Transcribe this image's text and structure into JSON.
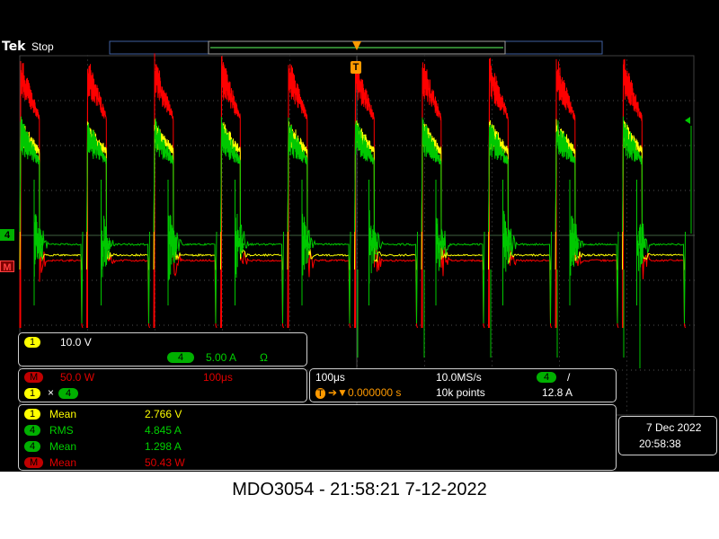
{
  "header": {
    "brand": "Tek",
    "status": "Stop"
  },
  "trigger_marker": "T",
  "channel_markers": {
    "ch4": "4",
    "math": "M"
  },
  "channel_box": {
    "ch1_badge": "1",
    "ch1_scale": "10.0 V",
    "ch4_badge": "4",
    "ch4_scale": "5.00 A",
    "ch4_unit": "Ω"
  },
  "math_box": {
    "badge": "M",
    "scale": "50.0 W",
    "time": "100μs",
    "operand1": "1",
    "operator": "×",
    "operand2": "4"
  },
  "timebase": {
    "horizontal": "100μs",
    "sample_rate": "10.0MS/s",
    "trigger_channel": "4",
    "trigger_slope": "/",
    "trigger_icon": "T",
    "position": "0.000000 s",
    "record_length": "10k points",
    "trigger_level": "12.8 A"
  },
  "measurements": [
    {
      "badge": "1",
      "type": "Mean",
      "value": "2.766 V",
      "color": "yellow"
    },
    {
      "badge": "4",
      "type": "RMS",
      "value": "4.845 A",
      "color": "green"
    },
    {
      "badge": "4",
      "type": "Mean",
      "value": "1.298 A",
      "color": "green"
    },
    {
      "badge": "M",
      "type": "Mean",
      "value": "50.43 W",
      "color": "red"
    }
  ],
  "date_box": {
    "date": "7 Dec  2022",
    "time": "20:58:38"
  },
  "footer": "MDO3054 - 21:58:21    7-12-2022",
  "colors": {
    "ch1": "#ffff00",
    "ch4": "#00c800",
    "math": "#ff0000",
    "trigger": "#ff9a00"
  }
}
